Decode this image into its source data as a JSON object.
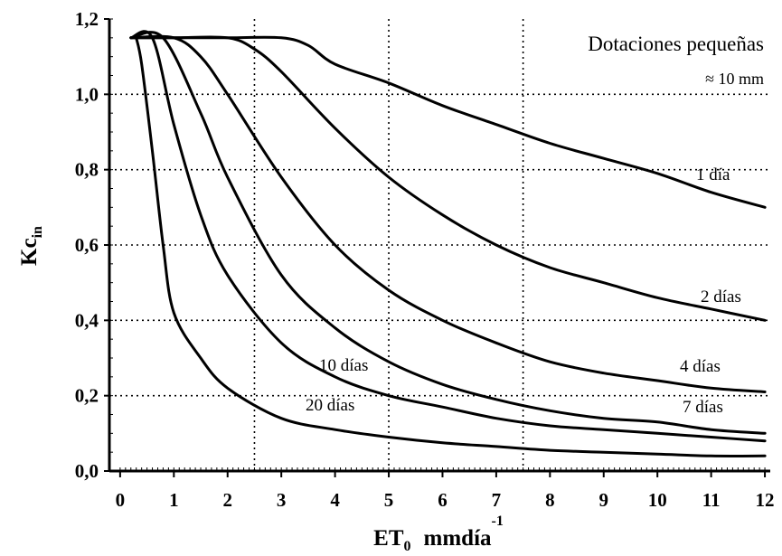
{
  "chart_data": {
    "type": "line",
    "xlabel": {
      "main": "ET",
      "sub": "0",
      "unit": "mmdía",
      "sup": "-1"
    },
    "ylabel": {
      "main": "Kc",
      "sub": "in"
    },
    "xlim": [
      -0.2,
      12.1
    ],
    "ylim": [
      0,
      1.2
    ],
    "x_ticks": [
      0,
      1,
      2,
      3,
      4,
      5,
      6,
      7,
      8,
      9,
      10,
      11,
      12
    ],
    "x_tick_labels": [
      "0",
      "1",
      "2",
      "3",
      "4",
      "5",
      "6",
      "7",
      "8",
      "9",
      "10",
      "11",
      "12"
    ],
    "y_ticks": [
      0,
      0.2,
      0.4,
      0.6,
      0.8,
      1.0,
      1.2
    ],
    "y_tick_labels": [
      "0,0",
      "0,2",
      "0,4",
      "0,6",
      "0,8",
      "1,0",
      "1,2"
    ],
    "grid": {
      "vertical_dotted_at": [
        2.5,
        5,
        7.5
      ],
      "horizontal_dotted_at": [
        0.2,
        0.4,
        0.6,
        0.8,
        1.0
      ]
    },
    "annotations": {
      "title": "Dotaciones pequeñas",
      "subtitle": "≈ 10 mm"
    },
    "series": [
      {
        "label": "1 día",
        "x": [
          0.2,
          1,
          2,
          3,
          3.5,
          4,
          5,
          6,
          7,
          8,
          9,
          10,
          11,
          12
        ],
        "y": [
          1.15,
          1.15,
          1.15,
          1.15,
          1.13,
          1.08,
          1.03,
          0.97,
          0.92,
          0.87,
          0.83,
          0.79,
          0.74,
          0.7
        ]
      },
      {
        "label": "2 días",
        "x": [
          0.2,
          1,
          2,
          2.5,
          3,
          4,
          5,
          6,
          7,
          8,
          9,
          10,
          11,
          12
        ],
        "y": [
          1.15,
          1.15,
          1.15,
          1.12,
          1.06,
          0.91,
          0.78,
          0.68,
          0.6,
          0.54,
          0.5,
          0.46,
          0.43,
          0.4
        ]
      },
      {
        "label": "4 días",
        "x": [
          0.2,
          1,
          1.5,
          2,
          3,
          4,
          5,
          6,
          7,
          8,
          9,
          10,
          11,
          12
        ],
        "y": [
          1.15,
          1.15,
          1.1,
          1.0,
          0.78,
          0.6,
          0.48,
          0.4,
          0.34,
          0.29,
          0.26,
          0.24,
          0.22,
          0.21
        ]
      },
      {
        "label": "7 días",
        "x": [
          0.2,
          0.8,
          1.5,
          2,
          3,
          4,
          5,
          6,
          7,
          8,
          9,
          10,
          11,
          12
        ],
        "y": [
          1.15,
          1.15,
          0.95,
          0.78,
          0.52,
          0.38,
          0.29,
          0.23,
          0.19,
          0.16,
          0.14,
          0.13,
          0.11,
          0.1
        ]
      },
      {
        "label": "10 días",
        "x": [
          0.2,
          0.6,
          1,
          1.5,
          2,
          3,
          4,
          5,
          6,
          7,
          8,
          9,
          10,
          11,
          12
        ],
        "y": [
          1.15,
          1.15,
          0.92,
          0.68,
          0.52,
          0.34,
          0.25,
          0.2,
          0.17,
          0.14,
          0.12,
          0.11,
          0.1,
          0.09,
          0.08
        ]
      },
      {
        "label": "20 días",
        "x": [
          0.3,
          0.4,
          0.6,
          0.8,
          1,
          1.5,
          2,
          3,
          4,
          5,
          6,
          7,
          8,
          9,
          10,
          11,
          12
        ],
        "y": [
          1.15,
          1.08,
          0.85,
          0.6,
          0.42,
          0.3,
          0.22,
          0.14,
          0.11,
          0.09,
          0.075,
          0.065,
          0.055,
          0.05,
          0.045,
          0.04,
          0.04
        ]
      }
    ]
  }
}
